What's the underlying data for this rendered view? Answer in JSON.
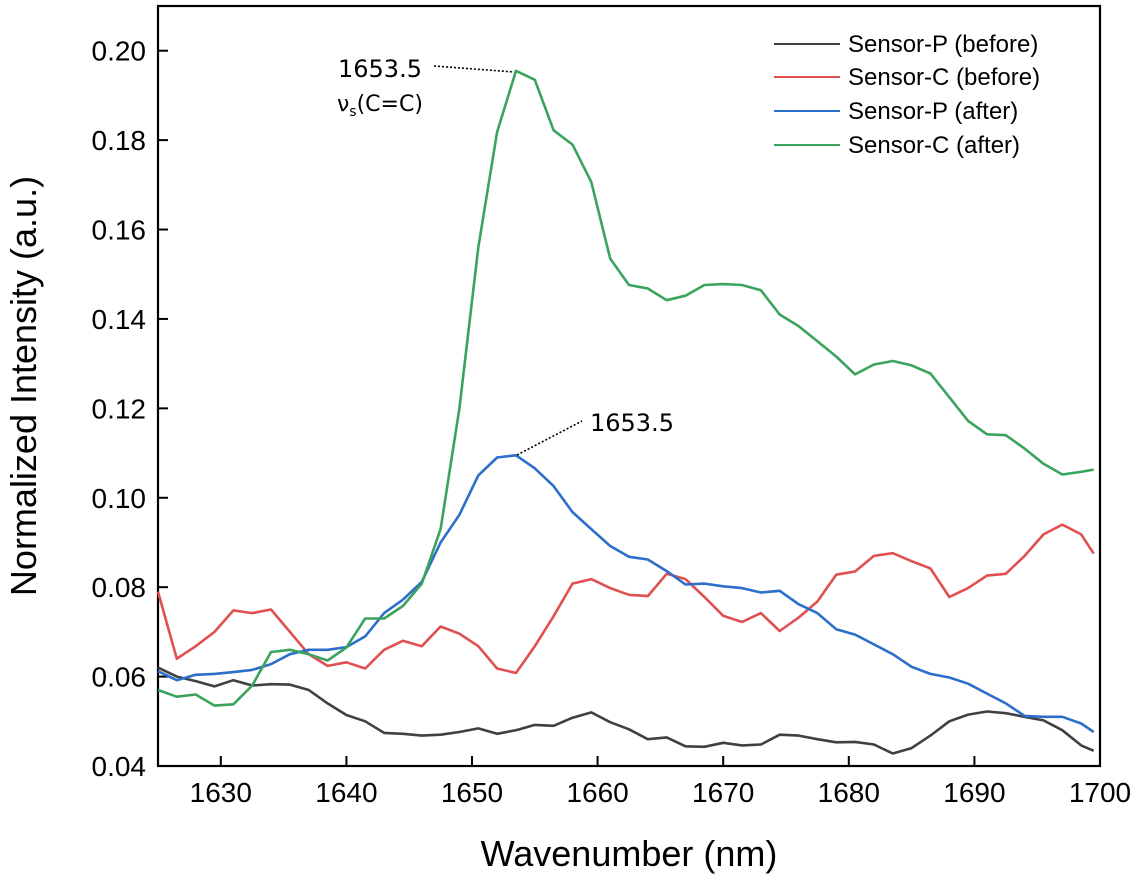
{
  "chart_data": {
    "type": "line",
    "xlabel": "Wavenumber (nm)",
    "ylabel": "Normalized Intensity (a.u.)",
    "xlim": [
      1625,
      1700
    ],
    "ylim": [
      0.04,
      0.21
    ],
    "xticks": [
      1630,
      1640,
      1650,
      1660,
      1670,
      1680,
      1690,
      1700
    ],
    "xtick_labels": [
      "1630",
      "1640",
      "1650",
      "1660",
      "1670",
      "1680",
      "1690",
      "1700"
    ],
    "yticks": [
      0.04,
      0.06,
      0.08,
      0.1,
      0.12,
      0.14,
      0.16,
      0.18,
      0.2
    ],
    "ytick_labels": [
      "0.04",
      "0.06",
      "0.08",
      "0.10",
      "0.12",
      "0.14",
      "0.16",
      "0.18",
      "0.20"
    ],
    "grid": false,
    "legend": "top-right",
    "x": [
      1625,
      1626.5,
      1628,
      1629.5,
      1631,
      1632.5,
      1634,
      1635.5,
      1637,
      1638.5,
      1640,
      1641.5,
      1643,
      1644.5,
      1646,
      1647.5,
      1649,
      1650.5,
      1652,
      1653.5,
      1655,
      1656.5,
      1658,
      1659.5,
      1661,
      1662.5,
      1664,
      1665.5,
      1667,
      1668.5,
      1670,
      1671.5,
      1673,
      1674.5,
      1676,
      1677.5,
      1679,
      1680.5,
      1682,
      1683.5,
      1685,
      1686.5,
      1688,
      1689.5,
      1691,
      1692.5,
      1694,
      1695.5,
      1697,
      1698.5,
      1699.5
    ],
    "series": [
      {
        "name": "Sensor-P (before)",
        "color": "#404040",
        "values": [
          0.062,
          0.06,
          0.059,
          0.0578,
          0.0592,
          0.058,
          0.0583,
          0.0582,
          0.057,
          0.054,
          0.0514,
          0.05,
          0.0474,
          0.0472,
          0.0468,
          0.047,
          0.0476,
          0.0484,
          0.0472,
          0.048,
          0.0492,
          0.049,
          0.0508,
          0.052,
          0.0498,
          0.0482,
          0.046,
          0.0464,
          0.0444,
          0.0443,
          0.0452,
          0.0446,
          0.0448,
          0.047,
          0.0468,
          0.046,
          0.0453,
          0.0454,
          0.0448,
          0.0428,
          0.044,
          0.0468,
          0.05,
          0.0515,
          0.0522,
          0.0518,
          0.051,
          0.0502,
          0.048,
          0.0446,
          0.0434
        ]
      },
      {
        "name": "Sensor-C (before)",
        "color": "#e05050",
        "values": [
          0.079,
          0.064,
          0.0668,
          0.07,
          0.0748,
          0.0742,
          0.075,
          0.07,
          0.065,
          0.0624,
          0.0632,
          0.0618,
          0.066,
          0.068,
          0.0668,
          0.0712,
          0.0696,
          0.0668,
          0.0618,
          0.0608,
          0.0668,
          0.0735,
          0.0808,
          0.0818,
          0.0798,
          0.0783,
          0.078,
          0.083,
          0.0818,
          0.0778,
          0.0736,
          0.0722,
          0.0742,
          0.0702,
          0.0732,
          0.0768,
          0.0828,
          0.0835,
          0.087,
          0.0876,
          0.0858,
          0.0842,
          0.0778,
          0.0798,
          0.0826,
          0.083,
          0.087,
          0.0918,
          0.094,
          0.0918,
          0.0875
        ]
      },
      {
        "name": "Sensor-P (after)",
        "color": "#2c6fca",
        "values": [
          0.0612,
          0.0592,
          0.0604,
          0.0606,
          0.061,
          0.0615,
          0.0628,
          0.065,
          0.066,
          0.066,
          0.0666,
          0.069,
          0.0742,
          0.0772,
          0.0812,
          0.09,
          0.0962,
          0.105,
          0.109,
          0.1095,
          0.1066,
          0.1026,
          0.0968,
          0.093,
          0.0892,
          0.0868,
          0.0862,
          0.0836,
          0.0806,
          0.0808,
          0.0802,
          0.0798,
          0.0788,
          0.0792,
          0.0762,
          0.0742,
          0.0706,
          0.0694,
          0.0672,
          0.065,
          0.0622,
          0.0606,
          0.0598,
          0.0584,
          0.0562,
          0.054,
          0.0512,
          0.051,
          0.051,
          0.0495,
          0.0476
        ]
      },
      {
        "name": "Sensor-C (after)",
        "color": "#3aa35e",
        "values": [
          0.057,
          0.0555,
          0.056,
          0.0535,
          0.0538,
          0.058,
          0.0655,
          0.066,
          0.065,
          0.0636,
          0.0665,
          0.073,
          0.073,
          0.0758,
          0.0808,
          0.093,
          0.12,
          0.156,
          0.1818,
          0.1955,
          0.1935,
          0.1822,
          0.179,
          0.1706,
          0.1535,
          0.1476,
          0.1468,
          0.1442,
          0.1452,
          0.1476,
          0.1478,
          0.1476,
          0.1464,
          0.141,
          0.1384,
          0.135,
          0.1316,
          0.1276,
          0.1298,
          0.1306,
          0.1296,
          0.1278,
          0.1225,
          0.1172,
          0.1142,
          0.114,
          0.111,
          0.1076,
          0.1052,
          0.1058,
          0.1063
        ]
      }
    ],
    "annotations": [
      {
        "text": "1653.5",
        "subtext_main": "ν",
        "subtext_sub": "s",
        "subtext_rest": "(C=C)",
        "series": "Sensor-C (after)",
        "x": 1653.5,
        "y": 0.1955
      },
      {
        "text": "1653.5",
        "series": "Sensor-P (after)",
        "x": 1653.5,
        "y": 0.1095
      }
    ]
  }
}
